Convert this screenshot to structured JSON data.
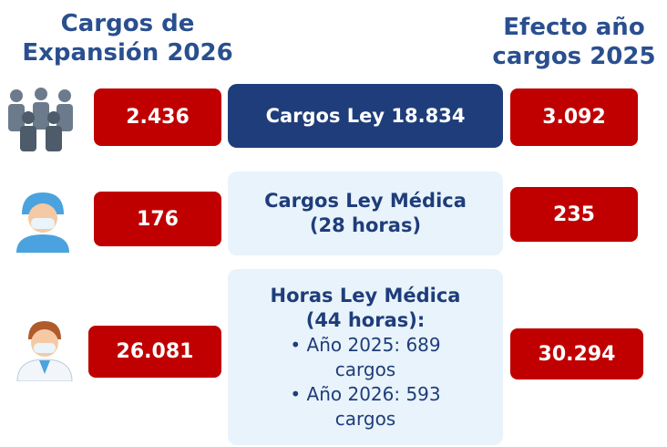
{
  "headers": {
    "left": [
      "Cargos de",
      "Expansión 2026"
    ],
    "right": [
      "Efecto año",
      "cargos 2025"
    ]
  },
  "rows": [
    {
      "left": "2.436",
      "center": [
        "Cargos Ley 18.834"
      ],
      "right": "3.092"
    },
    {
      "left": "176",
      "center": [
        "Cargos Ley Médica",
        "(28 horas)"
      ],
      "right": "235"
    },
    {
      "left": "26.081",
      "center": [
        "Horas Ley Médica",
        "(44 horas):"
      ],
      "bullets": [
        [
          "Año 2025: 689",
          "cargos"
        ],
        [
          "Año 2026: 593",
          "cargos"
        ]
      ],
      "right": "30.294"
    }
  ]
}
